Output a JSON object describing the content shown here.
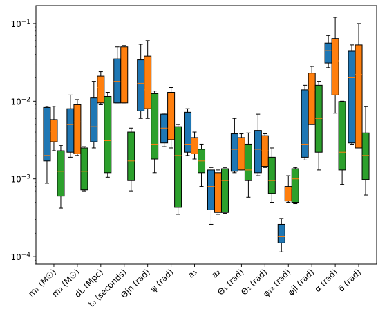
{
  "chart_data": {
    "type": "box",
    "y_scale": "log",
    "ylim": [
      8e-05,
      0.17
    ],
    "y_ticks": [
      {
        "value": 0.0001,
        "base": "10",
        "exp": "−4"
      },
      {
        "value": 0.001,
        "base": "10",
        "exp": "−3"
      },
      {
        "value": 0.01,
        "base": "10",
        "exp": "−2"
      },
      {
        "value": 0.1,
        "base": "10",
        "exp": "−1"
      }
    ],
    "categories": [
      "m₁ (M☉)",
      "m₂ (M☉)",
      "dL (Mpc)",
      "t₀ (seconds)",
      "Θjn (rad)",
      "ψ (rad)",
      "a₁",
      "a₂",
      "Θ₁ (rad)",
      "Θ₂ (rad)",
      "φ₁₂ (rad)",
      "φjl (rad)",
      "α (rad)",
      "δ (rad)"
    ],
    "series": [
      {
        "color": "#1f77b4",
        "boxes": [
          {
            "wlo": 0.00088,
            "q1": 0.0017,
            "med": 0.002,
            "q3": 0.0083,
            "whi": 0.0086
          },
          {
            "wlo": 0.0019,
            "q1": 0.0022,
            "med": 0.005,
            "q3": 0.008,
            "whi": 0.012
          },
          {
            "wlo": 0.0025,
            "q1": 0.003,
            "med": 0.0047,
            "q3": 0.011,
            "whi": 0.018
          },
          {
            "wlo": 0.0095,
            "q1": 0.0095,
            "med": 0.018,
            "q3": 0.035,
            "whi": 0.05
          },
          {
            "wlo": 0.006,
            "q1": 0.0075,
            "med": 0.017,
            "q3": 0.034,
            "whi": 0.054
          },
          {
            "wlo": 0.0026,
            "q1": 0.0029,
            "med": 0.0045,
            "q3": 0.0068,
            "whi": 0.007
          },
          {
            "wlo": 0.002,
            "q1": 0.0022,
            "med": 0.0028,
            "q3": 0.0072,
            "whi": 0.008
          },
          {
            "wlo": 0.00026,
            "q1": 0.0004,
            "med": 0.0008,
            "q3": 0.0013,
            "whi": 0.0014
          },
          {
            "wlo": 0.0012,
            "q1": 0.00125,
            "med": 0.0024,
            "q3": 0.0038,
            "whi": 0.006
          },
          {
            "wlo": 0.0011,
            "q1": 0.0012,
            "med": 0.0024,
            "q3": 0.0042,
            "whi": 0.0068
          },
          {
            "wlo": 0.000115,
            "q1": 0.00015,
            "med": 0.00018,
            "q3": 0.00026,
            "whi": 0.00031
          },
          {
            "wlo": 0.00175,
            "q1": 0.0019,
            "med": 0.0028,
            "q3": 0.014,
            "whi": 0.016
          },
          {
            "wlo": 0.027,
            "q1": 0.031,
            "med": 0.045,
            "q3": 0.056,
            "whi": 0.07
          },
          {
            "wlo": 0.0028,
            "q1": 0.0029,
            "med": 0.02,
            "q3": 0.044,
            "whi": 0.053
          }
        ]
      },
      {
        "color": "#ff7f0e",
        "boxes": [
          {
            "wlo": 0.0023,
            "q1": 0.003,
            "med": 0.0041,
            "q3": 0.0058,
            "whi": 0.0086
          },
          {
            "wlo": 0.002,
            "q1": 0.0021,
            "med": 0.0054,
            "q3": 0.009,
            "whi": 0.0105
          },
          {
            "wlo": 0.009,
            "q1": 0.0095,
            "med": 0.015,
            "q3": 0.021,
            "whi": 0.024
          },
          {
            "wlo": 0.0095,
            "q1": 0.0095,
            "med": 0.032,
            "q3": 0.05,
            "whi": 0.052
          },
          {
            "wlo": 0.006,
            "q1": 0.008,
            "med": 0.014,
            "q3": 0.038,
            "whi": 0.06
          },
          {
            "wlo": 0.0025,
            "q1": 0.0032,
            "med": 0.0045,
            "q3": 0.013,
            "whi": 0.015
          },
          {
            "wlo": 0.0018,
            "q1": 0.0021,
            "med": 0.0028,
            "q3": 0.0034,
            "whi": 0.004
          },
          {
            "wlo": 0.00035,
            "q1": 0.00037,
            "med": 0.0008,
            "q3": 0.0012,
            "whi": 0.0013
          },
          {
            "wlo": 0.0013,
            "q1": 0.0013,
            "med": 0.0026,
            "q3": 0.0034,
            "whi": 0.0038
          },
          {
            "wlo": 0.0014,
            "q1": 0.00145,
            "med": 0.0023,
            "q3": 0.0036,
            "whi": 0.0038
          },
          {
            "wlo": 0.0005,
            "q1": 0.00052,
            "med": 0.00075,
            "q3": 0.0008,
            "whi": 0.0011
          },
          {
            "wlo": 0.005,
            "q1": 0.005,
            "med": 0.014,
            "q3": 0.023,
            "whi": 0.028
          },
          {
            "wlo": 0.007,
            "q1": 0.012,
            "med": 0.033,
            "q3": 0.064,
            "whi": 0.12
          },
          {
            "wlo": 0.0025,
            "q1": 0.0025,
            "med": 0.022,
            "q3": 0.053,
            "whi": 0.1
          }
        ]
      },
      {
        "color": "#2ca02c",
        "boxes": [
          {
            "wlo": 0.00042,
            "q1": 0.0006,
            "med": 0.00125,
            "q3": 0.0023,
            "whi": 0.0027
          },
          {
            "wlo": 0.0007,
            "q1": 0.00072,
            "med": 0.00125,
            "q3": 0.0025,
            "whi": 0.0026
          },
          {
            "wlo": 0.00105,
            "q1": 0.0012,
            "med": 0.0031,
            "q3": 0.0115,
            "whi": 0.013
          },
          {
            "wlo": 0.0007,
            "q1": 0.00095,
            "med": 0.0017,
            "q3": 0.004,
            "whi": 0.0045
          },
          {
            "wlo": 0.0012,
            "q1": 0.0018,
            "med": 0.0028,
            "q3": 0.0125,
            "whi": 0.0135
          },
          {
            "wlo": 0.00035,
            "q1": 0.00043,
            "med": 0.002,
            "q3": 0.0047,
            "whi": 0.005
          },
          {
            "wlo": 0.0008,
            "q1": 0.0012,
            "med": 0.0017,
            "q3": 0.0024,
            "whi": 0.0028
          },
          {
            "wlo": 0.00036,
            "q1": 0.00037,
            "med": 0.00095,
            "q3": 0.00135,
            "whi": 0.0014
          },
          {
            "wlo": 0.00058,
            "q1": 0.00095,
            "med": 0.0013,
            "q3": 0.0028,
            "whi": 0.0039
          },
          {
            "wlo": 0.0005,
            "q1": 0.00065,
            "med": 0.00095,
            "q3": 0.0019,
            "whi": 0.0025
          },
          {
            "wlo": 0.00048,
            "q1": 0.0005,
            "med": 0.001,
            "q3": 0.00135,
            "whi": 0.0014
          },
          {
            "wlo": 0.0013,
            "q1": 0.0022,
            "med": 0.006,
            "q3": 0.016,
            "whi": 0.018
          },
          {
            "wlo": 0.00085,
            "q1": 0.0013,
            "med": 0.0022,
            "q3": 0.0099,
            "whi": 0.01
          },
          {
            "wlo": 0.00062,
            "q1": 0.00098,
            "med": 0.002,
            "q3": 0.0039,
            "whi": 0.0085
          }
        ]
      }
    ],
    "median_color": "#ff7f0e"
  }
}
